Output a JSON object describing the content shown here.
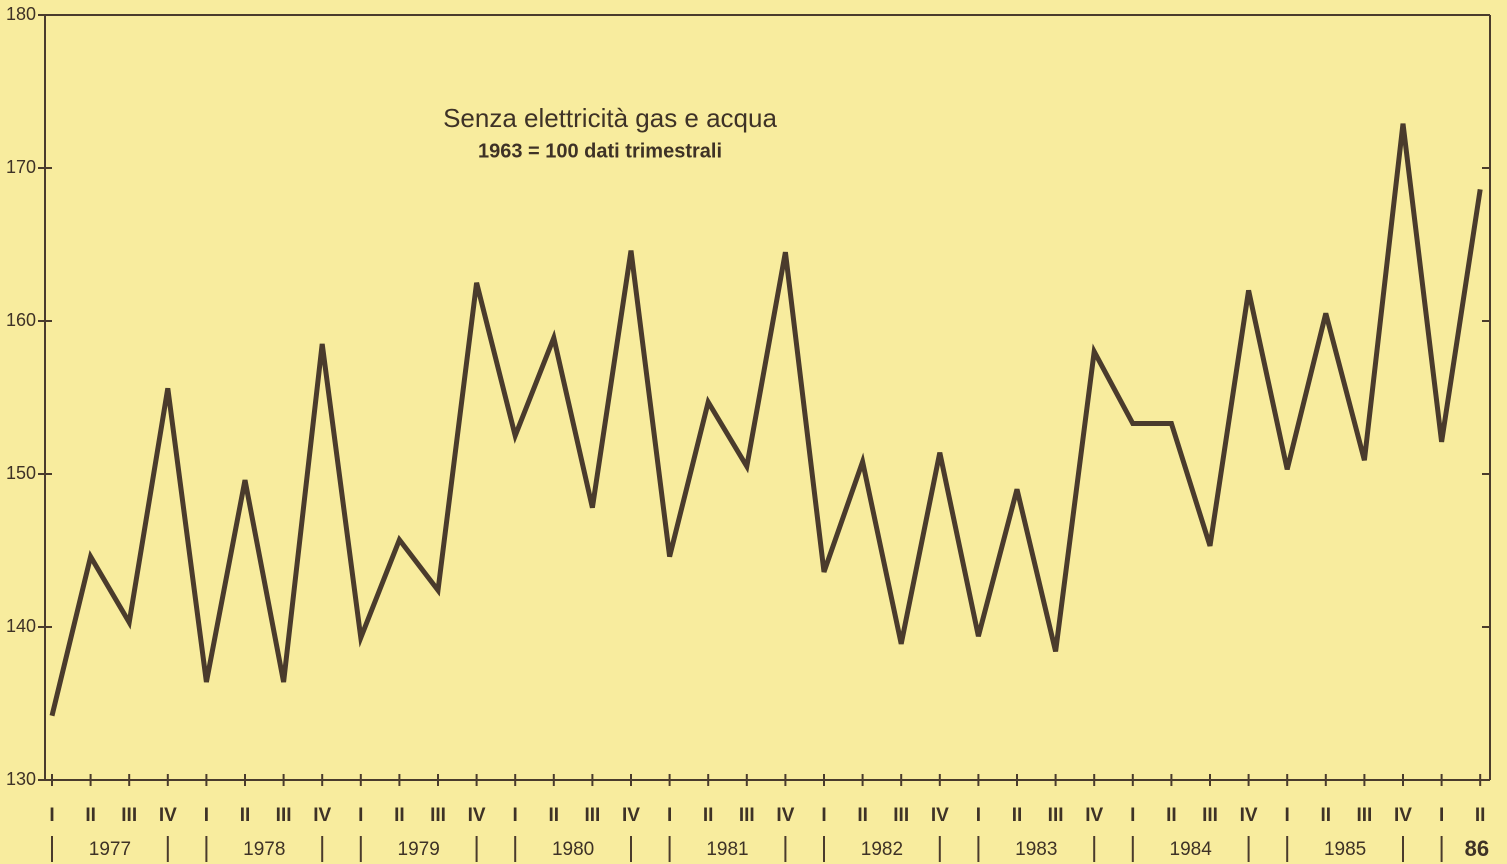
{
  "chart_data": {
    "type": "line",
    "title": "Senza elettricità gas e acqua",
    "subtitle": "1963 = 100 dati trimestrali",
    "categories": [
      "I",
      "II",
      "III",
      "IV",
      "I",
      "II",
      "III",
      "IV",
      "I",
      "II",
      "III",
      "IV",
      "I",
      "II",
      "III",
      "IV",
      "I",
      "II",
      "III",
      "IV",
      "I",
      "II",
      "III",
      "IV",
      "I",
      "II",
      "III",
      "IV",
      "I",
      "II",
      "III",
      "IV",
      "I",
      "II",
      "III",
      "IV",
      "I",
      "II"
    ],
    "years": [
      "1977",
      "1978",
      "1979",
      "1980",
      "1981",
      "1982",
      "1983",
      "1984",
      "1985",
      "86"
    ],
    "series": [
      {
        "name": "Senza elettricità gas e acqua",
        "color": "#4a3b2c",
        "values": [
          134.2,
          144.6,
          140.3,
          155.6,
          136.4,
          149.6,
          136.4,
          158.5,
          139.3,
          145.7,
          142.4,
          162.5,
          152.5,
          158.9,
          147.8,
          164.6,
          144.6,
          154.7,
          150.5,
          164.5,
          143.6,
          150.8,
          138.9,
          151.4,
          139.4,
          149.0,
          138.4,
          158.0,
          153.3,
          153.3,
          145.3,
          162.0,
          150.3,
          160.5,
          150.9,
          172.9,
          152.1,
          168.6
        ]
      }
    ],
    "ylim": [
      130,
      180
    ],
    "yticks": [
      130,
      140,
      150,
      160,
      170,
      180
    ]
  }
}
